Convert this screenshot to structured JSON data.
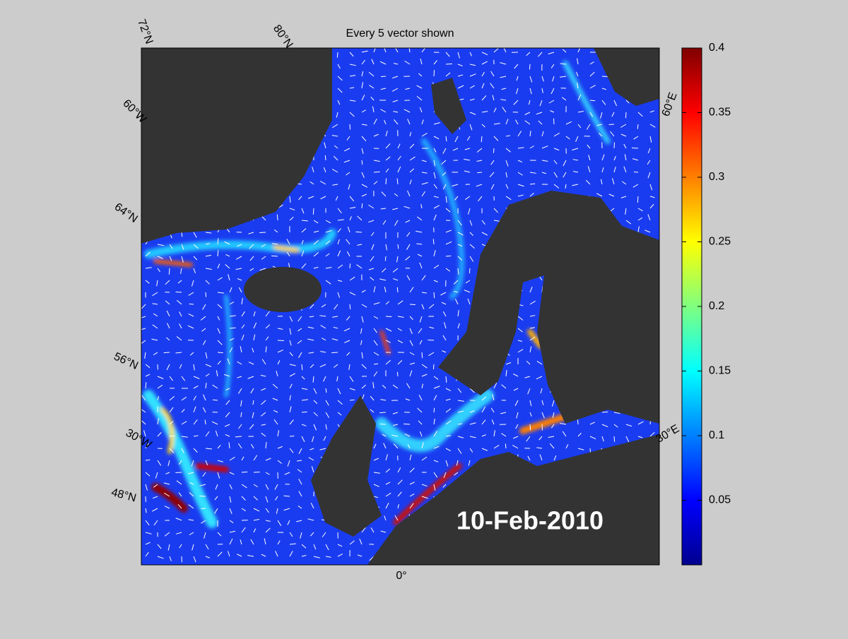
{
  "title": "Every 5 vector shown",
  "date": "10-Feb-2010",
  "grid_labels": [
    "72°N",
    "80°N",
    "60°W",
    "64°N",
    "56°N",
    "30°W",
    "48°N",
    "0°",
    "60°E",
    "30°E"
  ],
  "colorbar": {
    "colormap": "jet",
    "lim": [
      0,
      0.4
    ],
    "ticks": [
      0.05,
      0.1,
      0.15,
      0.2,
      0.25,
      0.3,
      0.35,
      0.4
    ]
  }
}
